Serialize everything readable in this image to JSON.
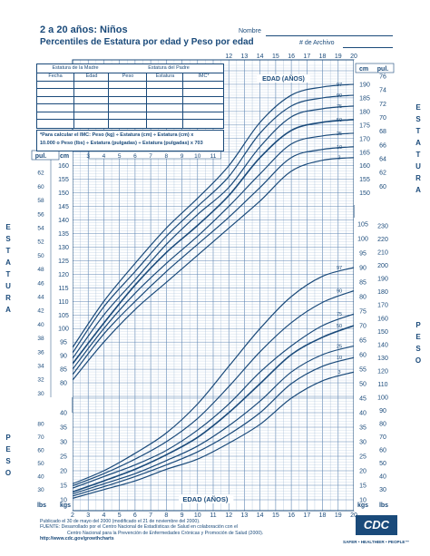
{
  "header": {
    "title": "2 a 20 años: Niños",
    "subtitle": "Percentiles de Estatura por edad y Peso por edad",
    "name_label": "Nombre",
    "file_label": "# de Archivo"
  },
  "record_table": {
    "mother_label": "Estatura de la Madre",
    "father_label": "Estatura del Padre",
    "columns": [
      "Fecha",
      "Edad",
      "Peso",
      "Estatura",
      "IMC*"
    ]
  },
  "bmi_note": {
    "line1": "*Para calcular el IMC: Peso (kg) ÷ Estatura (cm) ÷ Estatura (cm) x",
    "line2": "10.000 o Peso (lbs) ÷ Estatura (pulgadas) ÷ Estatura (pulgadas) x 703"
  },
  "side_labels": {
    "left_stature": [
      "E",
      "S",
      "T",
      "A",
      "T",
      "U",
      "R",
      "A"
    ],
    "right_stature": [
      "E",
      "S",
      "T",
      "A",
      "T",
      "U",
      "R",
      "A"
    ],
    "left_weight": [
      "P",
      "E",
      "S",
      "O"
    ],
    "right_weight": [
      "P",
      "E",
      "S",
      "O"
    ]
  },
  "footer": {
    "line1": "Publicado el 30 de mayo del 2000 (modificado el 21 de noviembre del 2000).",
    "line2": "FUENTE: Desarrollado por el Centro Nacional de Estadísticas de Salud en colaboración con el",
    "line3": "Centro Nacional para la Prevención de Enfermedades Crónicas y Promoción de Salud (2000).",
    "line4": "http://www.cdc.gov/growthcharts",
    "logo_text": "CDC",
    "tagline": "SAFER • HEALTHIER • PEOPLE™"
  },
  "colors": {
    "ink": "#1a4a7a",
    "grid_minor": "#9fb8d4",
    "grid_major": "#5f86b3"
  },
  "chart_data": [
    {
      "type": "line",
      "title": "Estatura por edad",
      "xlabel": "EDAD (AÑOS)",
      "ylabel_left": "cm / pul.",
      "x_ticks_top": [
        12,
        13,
        14,
        15,
        16,
        17,
        18,
        19,
        20
      ],
      "x_ticks_inner": [
        3,
        4,
        5,
        6,
        7,
        8,
        9,
        10,
        11
      ],
      "xlim": [
        2,
        20
      ],
      "ylim_cm": [
        75,
        195
      ],
      "upper_left_cm_ticks": [],
      "right_cm_ticks": [
        150,
        155,
        160,
        165,
        170,
        175,
        180,
        185,
        190
      ],
      "right_in_ticks": [
        60,
        62,
        64,
        66,
        68,
        70,
        72,
        74,
        76
      ],
      "left_cm_ticks": [
        80,
        85,
        90,
        95,
        100,
        105,
        110,
        115,
        120,
        125,
        130,
        135,
        140,
        145,
        150,
        155,
        160
      ],
      "left_in_ticks": [
        30,
        32,
        34,
        36,
        38,
        40,
        42,
        44,
        46,
        48,
        50,
        52,
        54,
        56,
        58,
        60,
        62
      ],
      "series": [
        {
          "name": "97",
          "x": [
            2,
            4,
            6,
            8,
            10,
            12,
            14,
            16,
            18,
            20
          ],
          "values": [
            93,
            110,
            124,
            137,
            148,
            160,
            176,
            186,
            189,
            190
          ]
        },
        {
          "name": "90",
          "x": [
            2,
            4,
            6,
            8,
            10,
            12,
            14,
            16,
            18,
            20
          ],
          "values": [
            91,
            108,
            121,
            134,
            145,
            156,
            172,
            182,
            185,
            186
          ]
        },
        {
          "name": "75",
          "x": [
            2,
            4,
            6,
            8,
            10,
            12,
            14,
            16,
            18,
            20
          ],
          "values": [
            89,
            105,
            118,
            131,
            142,
            152,
            167,
            178,
            181,
            182
          ]
        },
        {
          "name": "50",
          "x": [
            2,
            4,
            6,
            8,
            10,
            12,
            14,
            16,
            18,
            20
          ],
          "values": [
            87,
            102,
            116,
            128,
            138,
            149,
            163,
            173,
            176,
            177
          ]
        },
        {
          "name": "25",
          "x": [
            2,
            4,
            6,
            8,
            10,
            12,
            14,
            16,
            18,
            20
          ],
          "values": [
            85,
            100,
            113,
            124,
            134,
            145,
            157,
            168,
            171,
            172
          ]
        },
        {
          "name": "10",
          "x": [
            2,
            4,
            6,
            8,
            10,
            12,
            14,
            16,
            18,
            20
          ],
          "values": [
            83,
            98,
            110,
            121,
            131,
            141,
            152,
            163,
            166,
            167
          ]
        },
        {
          "name": "3",
          "x": [
            2,
            4,
            6,
            8,
            10,
            12,
            14,
            16,
            18,
            20
          ],
          "values": [
            81,
            95,
            107,
            117,
            127,
            137,
            147,
            158,
            162,
            163
          ]
        }
      ]
    },
    {
      "type": "line",
      "title": "Peso por edad",
      "xlabel": "EDAD (AÑOS)",
      "x_ticks_bottom": [
        2,
        3,
        4,
        5,
        6,
        7,
        8,
        9,
        10,
        11,
        12,
        13,
        14,
        15,
        16,
        17,
        18,
        19,
        20
      ],
      "xlim": [
        2,
        20
      ],
      "ylim_kg": [
        10,
        105
      ],
      "right_kg_ticks": [
        10,
        15,
        20,
        25,
        30,
        35,
        40,
        45,
        50,
        55,
        60,
        65,
        70,
        75,
        80,
        85,
        90,
        95,
        100,
        105
      ],
      "right_lb_ticks": [
        30,
        40,
        50,
        60,
        70,
        80,
        90,
        100,
        110,
        120,
        130,
        140,
        150,
        160,
        170,
        180,
        190,
        200,
        210,
        220,
        230
      ],
      "left_kg_ticks": [
        10,
        15,
        20,
        25,
        30,
        35,
        40
      ],
      "left_lb_ticks": [
        30,
        40,
        50,
        60,
        70,
        80
      ],
      "series": [
        {
          "name": "97",
          "x": [
            2,
            4,
            6,
            8,
            10,
            12,
            14,
            16,
            18,
            20
          ],
          "values": [
            15.5,
            20,
            26,
            33,
            43,
            56,
            69,
            80,
            87,
            90
          ]
        },
        {
          "name": "90",
          "x": [
            2,
            4,
            6,
            8,
            10,
            12,
            14,
            16,
            18,
            20
          ],
          "values": [
            14.8,
            19,
            24,
            30,
            38,
            49,
            61,
            71,
            78,
            82
          ]
        },
        {
          "name": "75",
          "x": [
            2,
            4,
            6,
            8,
            10,
            12,
            14,
            16,
            18,
            20
          ],
          "values": [
            14,
            18,
            22,
            27,
            34,
            43,
            54,
            63,
            70,
            74
          ]
        },
        {
          "name": "50",
          "x": [
            2,
            4,
            6,
            8,
            10,
            12,
            14,
            16,
            18,
            20
          ],
          "values": [
            12.7,
            16.5,
            20.5,
            25.5,
            31.5,
            40,
            50,
            60,
            66,
            70
          ]
        },
        {
          "name": "25",
          "x": [
            2,
            4,
            6,
            8,
            10,
            12,
            14,
            16,
            18,
            20
          ],
          "values": [
            12,
            15.5,
            19,
            23.5,
            28.5,
            35.5,
            44,
            54,
            60,
            63
          ]
        },
        {
          "name": "10",
          "x": [
            2,
            4,
            6,
            8,
            10,
            12,
            14,
            16,
            18,
            20
          ],
          "values": [
            11.3,
            14.5,
            18,
            22,
            26.5,
            32.5,
            40,
            50,
            56,
            59
          ]
        },
        {
          "name": "3",
          "x": [
            2,
            4,
            6,
            8,
            10,
            12,
            14,
            16,
            18,
            20
          ],
          "values": [
            10.5,
            13.5,
            16.5,
            20.5,
            24,
            29.5,
            36,
            45,
            51,
            54
          ]
        }
      ]
    }
  ]
}
